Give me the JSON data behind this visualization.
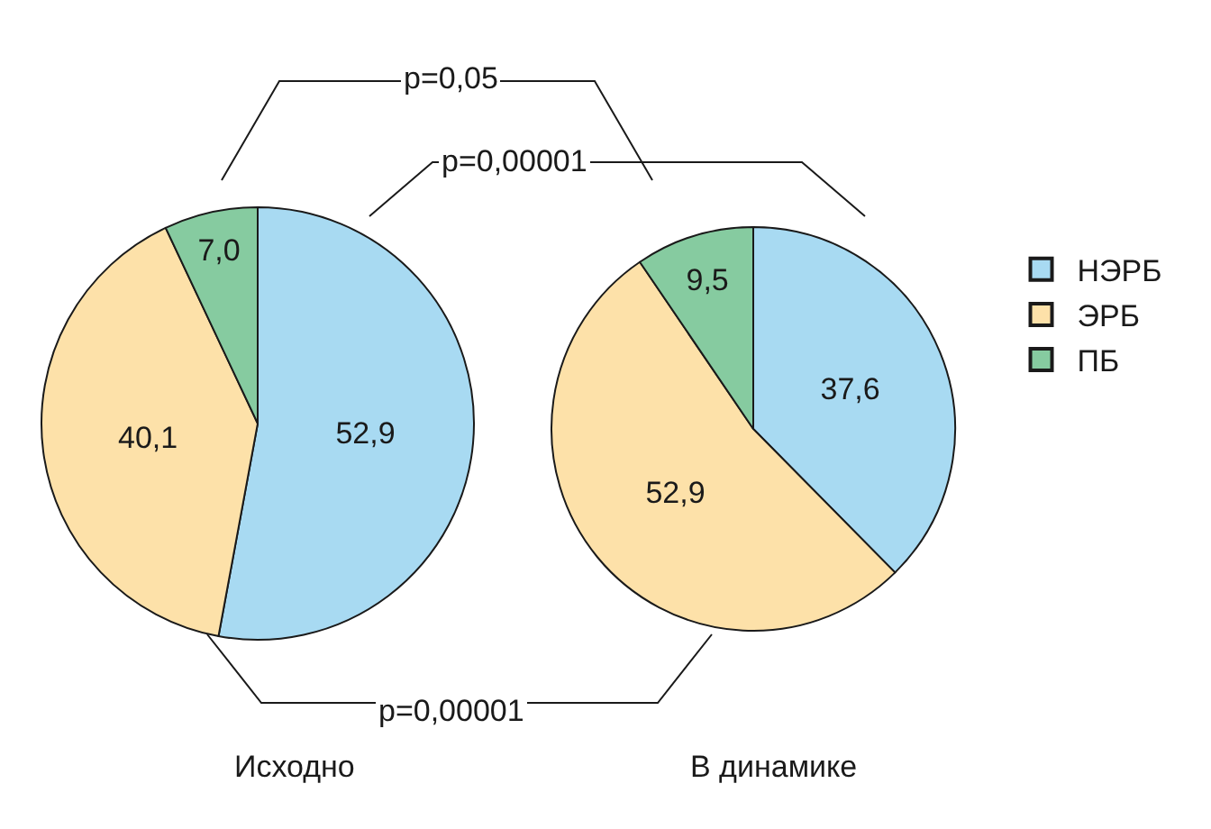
{
  "chart_data": [
    {
      "type": "pie",
      "title": "Исходно",
      "categories": [
        null,
        null,
        null
      ],
      "values": [
        52.9,
        40.1,
        7.0
      ],
      "value_labels": [
        "52,9",
        "40,1",
        "7,0"
      ],
      "colors": [
        "#a8daf2",
        "#fde1a9",
        "#86cba0"
      ],
      "annotations": [
        "p=0,05",
        "p=0,00001",
        "p=0,00001"
      ]
    },
    {
      "type": "pie",
      "title": "В динамике",
      "categories": [
        "НЭРБ",
        "ЭРБ",
        "ПБ"
      ],
      "values": [
        37.6,
        52.9,
        9.5
      ],
      "value_labels": [
        "37,6",
        "52,9",
        "9,5"
      ],
      "colors": [
        "#a8daf2",
        "#fde1a9",
        "#86cba0"
      ],
      "legend": "right"
    }
  ]
}
